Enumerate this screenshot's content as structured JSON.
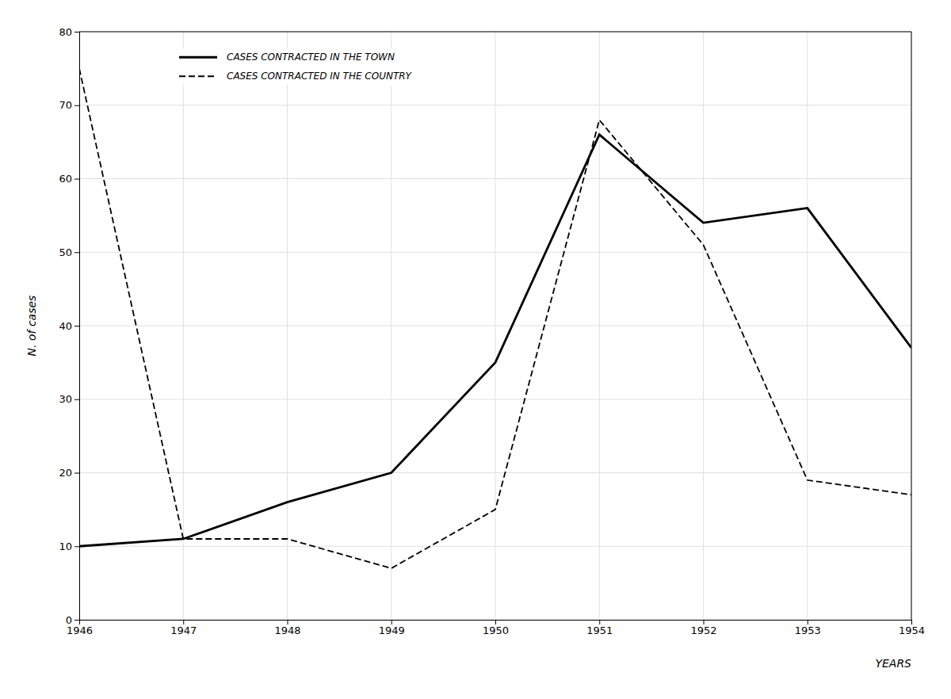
{
  "chart_data": {
    "type": "line",
    "x": [
      1946,
      1947,
      1948,
      1949,
      1950,
      1951,
      1952,
      1953,
      1954
    ],
    "series": [
      {
        "name": "CASES CONTRACTED IN THE TOWN",
        "color": "#000000",
        "line_style": "solid",
        "values": [
          10,
          11,
          16,
          20,
          35,
          66,
          54,
          56,
          37
        ]
      },
      {
        "name": "CASES CONTRACTED IN THE COUNTRY",
        "color": "#000000",
        "line_style": "dashed",
        "values": [
          75,
          11,
          11,
          7,
          15,
          68,
          51,
          19,
          17
        ]
      }
    ],
    "x_label": "YEARS",
    "y_label": "N. of cases",
    "xlim": [
      1946,
      1954
    ],
    "xticks": [
      1946,
      1947,
      1948,
      1949,
      1950,
      1951,
      1952,
      1953,
      1954
    ],
    "ylim": [
      0,
      80
    ],
    "yticks": [
      0,
      10,
      20,
      30,
      40,
      50,
      60,
      70,
      80
    ],
    "grid": true,
    "legend": "upper left"
  }
}
